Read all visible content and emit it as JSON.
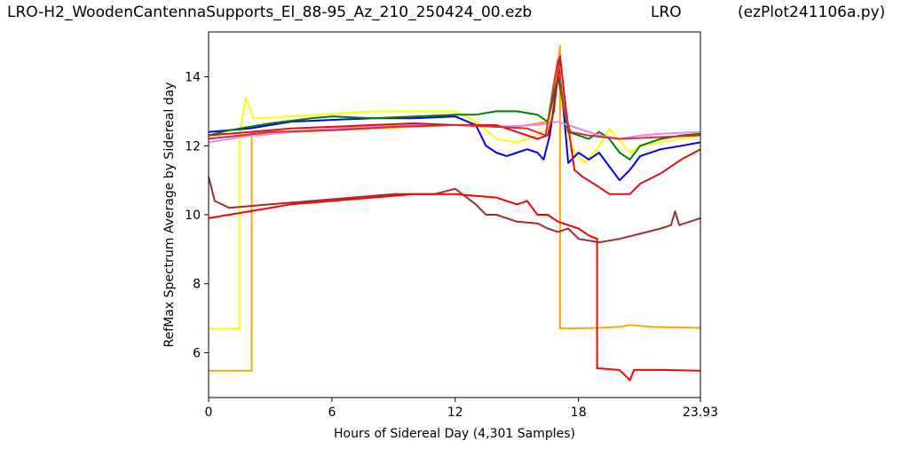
{
  "header": {
    "filename": "LRO-H2_WoodenCantennaSupports_El_88-95_Az_210_250424_00.ezb",
    "site": "LRO",
    "program": "(ezPlot241106a.py)"
  },
  "chart_data": {
    "type": "line",
    "title": "",
    "xlabel": "Hours of Sidereal Day  (4,301 Samples)",
    "ylabel": "RefMax Spectrum Average by Sidereal day",
    "xlim": [
      0,
      23.93
    ],
    "ylim": [
      4.7,
      15.3
    ],
    "xticks": [
      "0",
      "6",
      "12",
      "18",
      "23.93"
    ],
    "xtick_values": [
      0,
      6,
      12,
      18,
      23.93
    ],
    "yticks": [
      "6",
      "8",
      "10",
      "12",
      "14"
    ],
    "ytick_values": [
      6,
      8,
      10,
      12,
      14
    ],
    "grid": false,
    "series": [
      {
        "color": "#ffff00",
        "points": [
          [
            0,
            6.7
          ],
          [
            1.5,
            6.7
          ],
          [
            1.5,
            12.3
          ],
          [
            1.8,
            13.4
          ],
          [
            2.2,
            12.8
          ],
          [
            4,
            12.85
          ],
          [
            8,
            13.0
          ],
          [
            12,
            13.0
          ],
          [
            13,
            12.7
          ],
          [
            14,
            12.2
          ],
          [
            15,
            12.1
          ],
          [
            16,
            12.3
          ],
          [
            16.5,
            12.5
          ],
          [
            17,
            14.0
          ],
          [
            17.4,
            12.5
          ],
          [
            17.8,
            11.8
          ],
          [
            18.3,
            11.5
          ],
          [
            19,
            12.0
          ],
          [
            19.5,
            12.5
          ],
          [
            20.5,
            11.8
          ],
          [
            21,
            12.0
          ],
          [
            23.93,
            12.3
          ]
        ]
      },
      {
        "color": "#ffa500",
        "points": [
          [
            0,
            5.48
          ],
          [
            2.1,
            5.48
          ],
          [
            2.1,
            12.4
          ],
          [
            2.3,
            12.3
          ],
          [
            4,
            12.4
          ],
          [
            8,
            12.5
          ],
          [
            12,
            12.6
          ],
          [
            15,
            12.55
          ],
          [
            16.5,
            12.7
          ],
          [
            16.8,
            13.5
          ],
          [
            17.1,
            14.9
          ],
          [
            17.1,
            6.7
          ],
          [
            19,
            6.72
          ],
          [
            20,
            6.75
          ],
          [
            20.5,
            6.8
          ],
          [
            21.5,
            6.75
          ],
          [
            23.93,
            6.72
          ]
        ]
      },
      {
        "color": "#0000ff",
        "points": [
          [
            0,
            12.4
          ],
          [
            2,
            12.5
          ],
          [
            4,
            12.7
          ],
          [
            6,
            12.75
          ],
          [
            8,
            12.8
          ],
          [
            10,
            12.8
          ],
          [
            12,
            12.85
          ],
          [
            13,
            12.6
          ],
          [
            13.5,
            12.0
          ],
          [
            14,
            11.8
          ],
          [
            14.5,
            11.7
          ],
          [
            15,
            11.8
          ],
          [
            15.5,
            11.9
          ],
          [
            16,
            11.8
          ],
          [
            16.3,
            11.6
          ],
          [
            16.6,
            12.3
          ],
          [
            17,
            14.0
          ],
          [
            17.2,
            13.5
          ],
          [
            17.5,
            11.5
          ],
          [
            18,
            11.8
          ],
          [
            18.5,
            11.6
          ],
          [
            19,
            11.8
          ],
          [
            19.5,
            11.4
          ],
          [
            20,
            11.0
          ],
          [
            20.5,
            11.3
          ],
          [
            21,
            11.7
          ],
          [
            22,
            11.9
          ],
          [
            23,
            12.0
          ],
          [
            23.93,
            12.1
          ]
        ]
      },
      {
        "color": "#008000",
        "points": [
          [
            0,
            12.3
          ],
          [
            1,
            12.45
          ],
          [
            3,
            12.65
          ],
          [
            5,
            12.8
          ],
          [
            6,
            12.85
          ],
          [
            8,
            12.8
          ],
          [
            10,
            12.85
          ],
          [
            12,
            12.9
          ],
          [
            13,
            12.9
          ],
          [
            14,
            13.0
          ],
          [
            15,
            13.0
          ],
          [
            16,
            12.9
          ],
          [
            16.5,
            12.7
          ],
          [
            17,
            14.0
          ],
          [
            17.5,
            12.4
          ],
          [
            18,
            12.3
          ],
          [
            18.5,
            12.2
          ],
          [
            19,
            12.4
          ],
          [
            19.5,
            12.2
          ],
          [
            20,
            11.8
          ],
          [
            20.5,
            11.6
          ],
          [
            21,
            12.0
          ],
          [
            22,
            12.2
          ],
          [
            23,
            12.3
          ],
          [
            23.93,
            12.35
          ]
        ]
      },
      {
        "color": "#ee82ee",
        "points": [
          [
            0,
            12.1
          ],
          [
            2,
            12.3
          ],
          [
            4,
            12.4
          ],
          [
            6,
            12.5
          ],
          [
            8,
            12.55
          ],
          [
            10,
            12.6
          ],
          [
            12,
            12.6
          ],
          [
            14,
            12.55
          ],
          [
            16,
            12.6
          ],
          [
            17,
            12.7
          ],
          [
            18,
            12.5
          ],
          [
            19,
            12.3
          ],
          [
            20,
            12.2
          ],
          [
            21,
            12.3
          ],
          [
            22,
            12.35
          ],
          [
            23.93,
            12.4
          ]
        ]
      },
      {
        "color": "#a52a2a",
        "points": [
          [
            0,
            11.1
          ],
          [
            0.3,
            10.4
          ],
          [
            1,
            10.2
          ],
          [
            3,
            10.3
          ],
          [
            5,
            10.4
          ],
          [
            7,
            10.5
          ],
          [
            9,
            10.6
          ],
          [
            11,
            10.6
          ],
          [
            12,
            10.75
          ],
          [
            13,
            10.3
          ],
          [
            13.5,
            10.0
          ],
          [
            14,
            10.0
          ],
          [
            15,
            9.8
          ],
          [
            16,
            9.75
          ],
          [
            16.5,
            9.6
          ],
          [
            17,
            9.5
          ],
          [
            17.5,
            9.6
          ],
          [
            18,
            9.3
          ],
          [
            19,
            9.2
          ],
          [
            20,
            9.3
          ],
          [
            21,
            9.45
          ],
          [
            22,
            9.6
          ],
          [
            22.5,
            9.7
          ],
          [
            22.7,
            10.1
          ],
          [
            22.9,
            9.7
          ],
          [
            23.93,
            9.9
          ]
        ]
      },
      {
        "color": "#ff0000",
        "points": [
          [
            0,
            9.9
          ],
          [
            2,
            10.1
          ],
          [
            4,
            10.3
          ],
          [
            6,
            10.4
          ],
          [
            8,
            10.5
          ],
          [
            10,
            10.6
          ],
          [
            12,
            10.6
          ],
          [
            14,
            10.5
          ],
          [
            15,
            10.3
          ],
          [
            15.5,
            10.4
          ],
          [
            16,
            10.0
          ],
          [
            16.5,
            10.0
          ],
          [
            17,
            9.8
          ],
          [
            17.5,
            9.7
          ],
          [
            18,
            9.6
          ],
          [
            18.5,
            9.4
          ],
          [
            18.9,
            9.3
          ],
          [
            18.9,
            5.55
          ],
          [
            20,
            5.5
          ],
          [
            20.5,
            5.2
          ],
          [
            20.7,
            5.5
          ],
          [
            22,
            5.5
          ],
          [
            23.93,
            5.48
          ]
        ]
      },
      {
        "color": "#dd1111",
        "points": [
          [
            0,
            12.3
          ],
          [
            2,
            12.4
          ],
          [
            4,
            12.5
          ],
          [
            6,
            12.55
          ],
          [
            8,
            12.6
          ],
          [
            10,
            12.65
          ],
          [
            12,
            12.6
          ],
          [
            14,
            12.6
          ],
          [
            15,
            12.4
          ],
          [
            16,
            12.2
          ],
          [
            16.5,
            12.3
          ],
          [
            16.8,
            13.0
          ],
          [
            17.1,
            14.6
          ],
          [
            17.4,
            13.0
          ],
          [
            17.8,
            11.3
          ],
          [
            18.2,
            11.1
          ],
          [
            19,
            10.8
          ],
          [
            19.5,
            10.6
          ],
          [
            20.5,
            10.6
          ],
          [
            21,
            10.9
          ],
          [
            22,
            11.2
          ],
          [
            23,
            11.6
          ],
          [
            23.93,
            11.9
          ]
        ]
      },
      {
        "color": "#cc3333",
        "points": [
          [
            0,
            12.2
          ],
          [
            3,
            12.4
          ],
          [
            6,
            12.45
          ],
          [
            9,
            12.55
          ],
          [
            12,
            12.6
          ],
          [
            14,
            12.55
          ],
          [
            15.5,
            12.5
          ],
          [
            16.4,
            12.3
          ],
          [
            16.8,
            13.8
          ],
          [
            17.0,
            14.5
          ],
          [
            17.3,
            13.0
          ],
          [
            17.6,
            12.4
          ],
          [
            18.5,
            12.3
          ],
          [
            20,
            12.2
          ],
          [
            22,
            12.25
          ],
          [
            23.93,
            12.3
          ]
        ]
      }
    ]
  }
}
